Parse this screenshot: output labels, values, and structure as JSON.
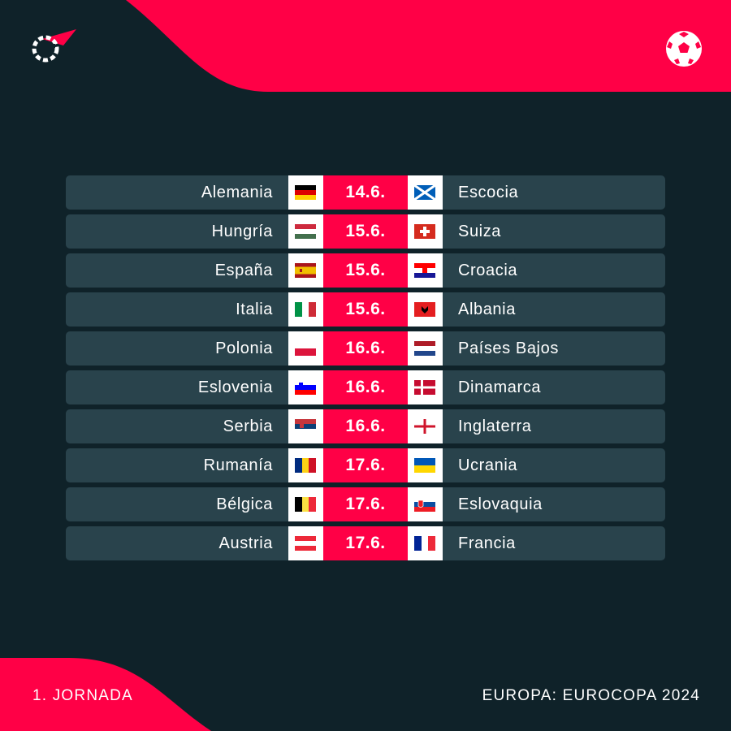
{
  "colors": {
    "background": "#0f2229",
    "accent": "#ff0046",
    "row": "#29434c"
  },
  "header": {
    "logo_icon": "flashscore-logo-icon",
    "ball_icon": "football-icon"
  },
  "matches": [
    {
      "home": "Alemania",
      "home_flag": "germany",
      "date": "14.6.",
      "away": "Escocia",
      "away_flag": "scotland"
    },
    {
      "home": "Hungría",
      "home_flag": "hungary",
      "date": "15.6.",
      "away": "Suiza",
      "away_flag": "switzerland"
    },
    {
      "home": "España",
      "home_flag": "spain",
      "date": "15.6.",
      "away": "Croacia",
      "away_flag": "croatia"
    },
    {
      "home": "Italia",
      "home_flag": "italy",
      "date": "15.6.",
      "away": "Albania",
      "away_flag": "albania"
    },
    {
      "home": "Polonia",
      "home_flag": "poland",
      "date": "16.6.",
      "away": "Países Bajos",
      "away_flag": "netherlands"
    },
    {
      "home": "Eslovenia",
      "home_flag": "slovenia",
      "date": "16.6.",
      "away": "Dinamarca",
      "away_flag": "denmark"
    },
    {
      "home": "Serbia",
      "home_flag": "serbia",
      "date": "16.6.",
      "away": "Inglaterra",
      "away_flag": "england"
    },
    {
      "home": "Rumanía",
      "home_flag": "romania",
      "date": "17.6.",
      "away": "Ucrania",
      "away_flag": "ukraine"
    },
    {
      "home": "Bélgica",
      "home_flag": "belgium",
      "date": "17.6.",
      "away": "Eslovaquia",
      "away_flag": "slovakia"
    },
    {
      "home": "Austria",
      "home_flag": "austria",
      "date": "17.6.",
      "away": "Francia",
      "away_flag": "france"
    }
  ],
  "footer": {
    "round": "1. JORNADA",
    "competition": "EUROPA: EUROCOPA 2024"
  }
}
